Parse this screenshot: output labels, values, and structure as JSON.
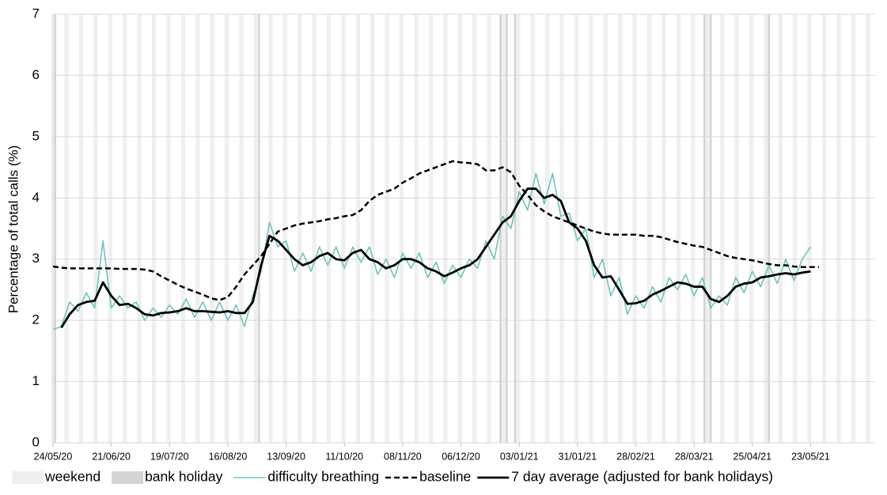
{
  "chart_data": {
    "type": "line",
    "y_label": "Percentage of total calls (%)",
    "x": [
      "24/05/20",
      "28/05/20",
      "01/06/20",
      "05/06/20",
      "09/06/20",
      "13/06/20",
      "17/06/20",
      "21/06/20",
      "25/06/20",
      "29/06/20",
      "03/07/20",
      "07/07/20",
      "11/07/20",
      "15/07/20",
      "19/07/20",
      "23/07/20",
      "27/07/20",
      "31/07/20",
      "04/08/20",
      "08/08/20",
      "12/08/20",
      "16/08/20",
      "20/08/20",
      "24/08/20",
      "28/08/20",
      "01/09/20",
      "05/09/20",
      "09/09/20",
      "13/09/20",
      "17/09/20",
      "21/09/20",
      "25/09/20",
      "29/09/20",
      "03/10/20",
      "07/10/20",
      "11/10/20",
      "15/10/20",
      "19/10/20",
      "23/10/20",
      "27/10/20",
      "31/10/20",
      "04/11/20",
      "08/11/20",
      "12/11/20",
      "16/11/20",
      "20/11/20",
      "24/11/20",
      "28/11/20",
      "02/12/20",
      "06/12/20",
      "10/12/20",
      "14/12/20",
      "18/12/20",
      "22/12/20",
      "26/12/20",
      "30/12/20",
      "03/01/21",
      "07/01/21",
      "11/01/21",
      "15/01/21",
      "19/01/21",
      "23/01/21",
      "27/01/21",
      "31/01/21",
      "04/02/21",
      "08/02/21",
      "12/02/21",
      "16/02/21",
      "20/02/21",
      "24/02/21",
      "28/02/21",
      "04/03/21",
      "08/03/21",
      "12/03/21",
      "16/03/21",
      "20/03/21",
      "24/03/21",
      "28/03/21",
      "01/04/21",
      "05/04/21",
      "09/04/21",
      "13/04/21",
      "17/04/21",
      "21/04/21",
      "25/04/21",
      "29/04/21",
      "03/05/21",
      "07/05/21",
      "11/05/21",
      "15/05/21",
      "19/05/21",
      "23/05/21",
      "27/05/21"
    ],
    "series": [
      {
        "name": "difficulty breathing",
        "color": "#6cc5bd",
        "style": "solid",
        "width": 1.6,
        "values": [
          1.85,
          1.9,
          2.3,
          2.15,
          2.45,
          2.2,
          3.3,
          2.2,
          2.4,
          2.2,
          2.3,
          2.0,
          2.2,
          2.05,
          2.25,
          2.1,
          2.35,
          2.05,
          2.3,
          2.0,
          2.3,
          2.0,
          2.25,
          1.9,
          2.4,
          2.8,
          3.6,
          3.2,
          3.3,
          2.8,
          3.1,
          2.8,
          3.2,
          2.9,
          3.2,
          2.85,
          3.2,
          2.95,
          3.2,
          2.75,
          3.0,
          2.7,
          3.1,
          2.85,
          3.1,
          2.7,
          2.95,
          2.6,
          2.9,
          2.7,
          3.0,
          2.85,
          3.3,
          3.0,
          3.7,
          3.5,
          4.1,
          3.8,
          4.4,
          3.9,
          4.4,
          3.7,
          3.75,
          3.3,
          3.5,
          2.7,
          3.0,
          2.4,
          2.7,
          2.1,
          2.4,
          2.2,
          2.55,
          2.3,
          2.7,
          2.5,
          2.75,
          2.4,
          2.7,
          2.2,
          2.4,
          2.25,
          2.7,
          2.45,
          2.8,
          2.55,
          2.9,
          2.6,
          3.0,
          2.65,
          3.0,
          3.2,
          null
        ]
      },
      {
        "name": "baseline",
        "color": "#000000",
        "style": "dashed",
        "width": 2.5,
        "values": [
          2.88,
          2.86,
          2.85,
          2.85,
          2.85,
          2.85,
          2.85,
          2.85,
          2.84,
          2.84,
          2.84,
          2.83,
          2.8,
          2.72,
          2.65,
          2.58,
          2.52,
          2.47,
          2.42,
          2.36,
          2.33,
          2.38,
          2.55,
          2.75,
          2.9,
          3.05,
          3.25,
          3.45,
          3.5,
          3.55,
          3.58,
          3.6,
          3.62,
          3.65,
          3.67,
          3.7,
          3.72,
          3.8,
          3.95,
          4.05,
          4.1,
          4.15,
          4.25,
          4.32,
          4.4,
          4.45,
          4.5,
          4.55,
          4.6,
          4.58,
          4.57,
          4.55,
          4.45,
          4.45,
          4.5,
          4.42,
          4.2,
          4.05,
          3.88,
          3.78,
          3.7,
          3.65,
          3.6,
          3.55,
          3.5,
          3.45,
          3.42,
          3.4,
          3.4,
          3.4,
          3.4,
          3.38,
          3.38,
          3.36,
          3.32,
          3.28,
          3.25,
          3.22,
          3.2,
          3.15,
          3.1,
          3.05,
          3.02,
          3.0,
          2.98,
          2.95,
          2.92,
          2.9,
          2.9,
          2.88,
          2.87,
          2.87,
          2.87
        ]
      },
      {
        "name": "7 day average (adjusted for bank holidays)",
        "color": "#000000",
        "style": "solid",
        "width": 2.8,
        "values": [
          null,
          1.88,
          2.1,
          2.25,
          2.3,
          2.32,
          2.62,
          2.4,
          2.25,
          2.27,
          2.2,
          2.1,
          2.08,
          2.12,
          2.13,
          2.15,
          2.2,
          2.15,
          2.15,
          2.14,
          2.13,
          2.15,
          2.12,
          2.12,
          2.3,
          2.9,
          3.38,
          3.3,
          3.15,
          3.0,
          2.9,
          2.95,
          3.05,
          3.1,
          3.0,
          2.98,
          3.1,
          3.15,
          3.0,
          2.95,
          2.85,
          2.9,
          3.0,
          3.0,
          2.95,
          2.85,
          2.8,
          2.72,
          2.78,
          2.85,
          2.9,
          3.0,
          3.2,
          3.4,
          3.6,
          3.7,
          3.95,
          4.15,
          4.15,
          4.0,
          4.05,
          3.95,
          3.6,
          3.5,
          3.3,
          2.9,
          2.7,
          2.72,
          2.5,
          2.27,
          2.28,
          2.32,
          2.42,
          2.48,
          2.55,
          2.62,
          2.6,
          2.55,
          2.55,
          2.35,
          2.3,
          2.4,
          2.55,
          2.6,
          2.62,
          2.7,
          2.72,
          2.75,
          2.77,
          2.75,
          2.78,
          2.8,
          null
        ]
      }
    ],
    "shading": [
      {
        "name": "weekend",
        "color": "#efefef",
        "rule": "weekend"
      },
      {
        "name": "bank holiday",
        "color": "#d4d4d4",
        "dates": [
          "25/05/20",
          "31/08/20",
          "25/12/20",
          "28/12/20",
          "01/01/21",
          "02/04/21",
          "05/04/21",
          "03/05/21"
        ]
      }
    ],
    "xlim": [
      "24/05/20",
      "23/06/21"
    ],
    "xticks": [
      "24/05/20",
      "21/06/20",
      "19/07/20",
      "16/08/20",
      "13/09/20",
      "11/10/20",
      "08/11/20",
      "06/12/20",
      "03/01/21",
      "31/01/21",
      "28/02/21",
      "28/03/21",
      "25/04/21",
      "23/05/21"
    ],
    "ylim": [
      0,
      7
    ],
    "yticks": [
      0,
      1,
      2,
      3,
      4,
      5,
      6,
      7
    ],
    "grid": true,
    "legend": "bottom"
  }
}
